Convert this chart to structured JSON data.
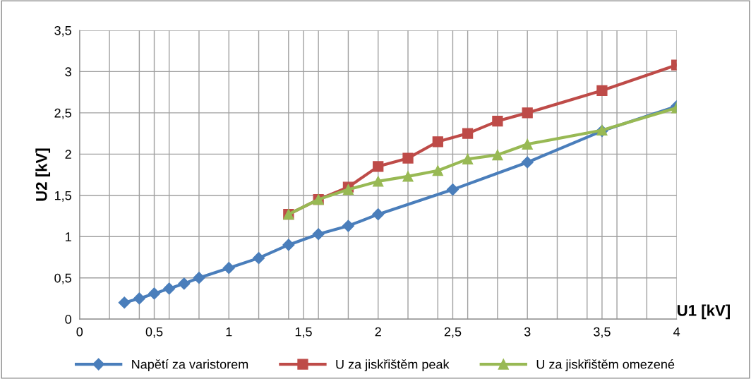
{
  "chart_data": {
    "type": "line",
    "xlabel": "U1 [kV]",
    "ylabel": "U2 [kV]",
    "xlim": [
      0,
      4
    ],
    "ylim": [
      0,
      3.5
    ],
    "xticks": [
      0,
      {
        "value": 0.2,
        "label": null
      },
      {
        "value": 0.4,
        "label": null
      },
      {
        "value": 0.5,
        "label": "0,5"
      },
      {
        "value": 0.6,
        "label": null
      },
      {
        "value": 0.8,
        "label": null
      },
      1,
      {
        "value": 1.2,
        "label": null
      },
      {
        "value": 1.4,
        "label": null
      },
      {
        "value": 1.5,
        "label": "1,5"
      },
      {
        "value": 1.6,
        "label": null
      },
      {
        "value": 1.8,
        "label": null
      },
      2,
      {
        "value": 2.2,
        "label": null
      },
      {
        "value": 2.4,
        "label": null
      },
      {
        "value": 2.5,
        "label": "2,5"
      },
      {
        "value": 2.6,
        "label": null
      },
      {
        "value": 2.8,
        "label": null
      },
      3,
      {
        "value": 3.2,
        "label": null
      },
      {
        "value": 3.4,
        "label": null
      },
      {
        "value": 3.5,
        "label": "3,5"
      },
      {
        "value": 3.6,
        "label": null
      },
      {
        "value": 3.8,
        "label": null
      },
      4
    ],
    "yticks": [
      0,
      {
        "value": 0.5,
        "label": "0,5"
      },
      1,
      {
        "value": 1.5,
        "label": "1,5"
      },
      2,
      {
        "value": 2.5,
        "label": "2,5"
      },
      3,
      {
        "value": 3.5,
        "label": "3,5"
      }
    ],
    "grid": true,
    "legend": "bottom",
    "line_style": "solid",
    "series": [
      {
        "name": "Napětí za varistorem",
        "color": "#4a7ebb",
        "marker": "diamond",
        "x": [
          0.3,
          0.4,
          0.5,
          0.6,
          0.7,
          0.8,
          1,
          1.2,
          1.4,
          1.6,
          1.8,
          2,
          2.5,
          3,
          3.5,
          4
        ],
        "values": [
          0.2,
          0.25,
          0.31,
          0.37,
          0.43,
          0.5,
          0.62,
          0.74,
          0.9,
          1.03,
          1.13,
          1.27,
          1.57,
          1.9,
          2.28,
          2.58
        ]
      },
      {
        "name": "U za jiskřištěm peak",
        "color": "#be4b48",
        "marker": "square",
        "x": [
          1.4,
          1.6,
          1.8,
          2,
          2.2,
          2.4,
          2.6,
          2.8,
          3,
          3.5,
          4
        ],
        "values": [
          1.27,
          1.45,
          1.6,
          1.85,
          1.95,
          2.15,
          2.25,
          2.4,
          2.5,
          2.77,
          3.08
        ]
      },
      {
        "name": "U za jiskřištěm omezené",
        "color": "#98b954",
        "marker": "triangle",
        "x": [
          1.4,
          1.6,
          1.8,
          2,
          2.2,
          2.4,
          2.6,
          2.8,
          3,
          3.5,
          4
        ],
        "values": [
          1.27,
          1.45,
          1.57,
          1.67,
          1.73,
          1.8,
          1.94,
          1.99,
          2.12,
          2.29,
          2.56
        ]
      }
    ]
  }
}
